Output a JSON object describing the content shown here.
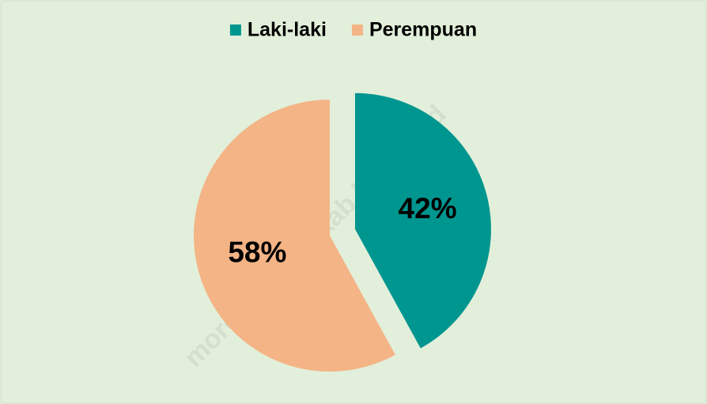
{
  "chart_data": {
    "type": "pie",
    "categories": [
      "Laki-laki",
      "Perempuan"
    ],
    "values": [
      42,
      58
    ],
    "value_labels": [
      "42%",
      "58%"
    ],
    "colors": [
      "#009690",
      "#f4b486"
    ],
    "explode": [
      true,
      false
    ],
    "legend": "top",
    "watermark": "morowaliutarakab.bps.go.id"
  }
}
